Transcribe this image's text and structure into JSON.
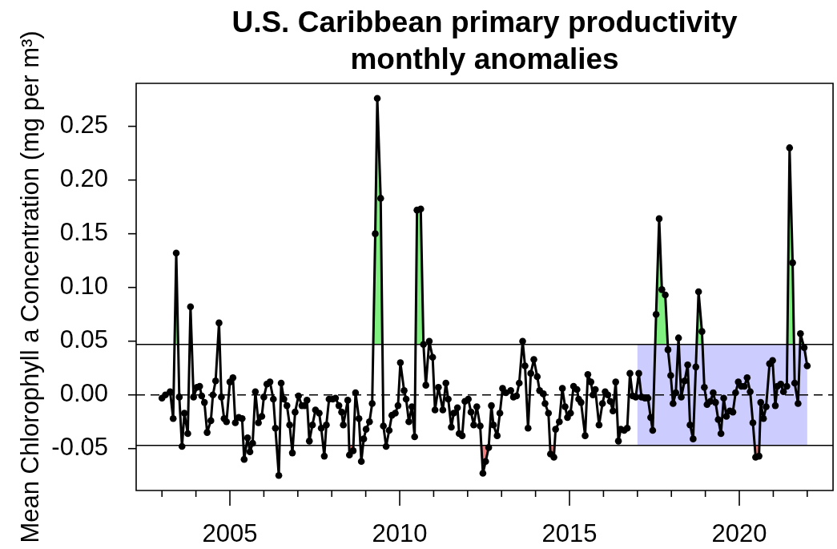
{
  "chart_data": {
    "type": "line",
    "title": "U.S. Caribbean primary productivity monthly anomalies",
    "ylabel": "Mean Chlorophyll a Concentration (mg per m³)",
    "x": [
      2003.0,
      2003.1,
      2003.24,
      2003.33,
      2003.42,
      2003.51,
      2003.59,
      2003.66,
      2003.76,
      2003.84,
      2003.93,
      2004.03,
      2004.11,
      2004.17,
      2004.25,
      2004.33,
      2004.44,
      2004.5,
      2004.58,
      2004.68,
      2004.75,
      2004.83,
      2004.9,
      2005.0,
      2005.09,
      2005.16,
      2005.26,
      2005.36,
      2005.42,
      2005.52,
      2005.59,
      2005.67,
      2005.75,
      2005.84,
      2005.94,
      2006.0,
      2006.09,
      2006.18,
      2006.28,
      2006.34,
      2006.44,
      2006.51,
      2006.59,
      2006.68,
      2006.76,
      2006.84,
      2006.92,
      2007.02,
      2007.12,
      2007.2,
      2007.27,
      2007.34,
      2007.43,
      2007.52,
      2007.63,
      2007.69,
      2007.78,
      2007.84,
      2007.92,
      2008.03,
      2008.11,
      2008.21,
      2008.29,
      2008.34,
      2008.47,
      2008.52,
      2008.63,
      2008.7,
      2008.8,
      2008.87,
      2008.94,
      2009.01,
      2009.11,
      2009.19,
      2009.28,
      2009.34,
      2009.44,
      2009.52,
      2009.6,
      2009.69,
      2009.77,
      2009.87,
      2009.95,
      2010.02,
      2010.13,
      2010.19,
      2010.27,
      2010.36,
      2010.44,
      2010.51,
      2010.62,
      2010.7,
      2010.77,
      2010.87,
      2010.97,
      2011.04,
      2011.14,
      2011.27,
      2011.36,
      2011.43,
      2011.52,
      2011.59,
      2011.7,
      2011.75,
      2011.84,
      2011.92,
      2012.02,
      2012.1,
      2012.18,
      2012.27,
      2012.37,
      2012.45,
      2012.53,
      2012.62,
      2012.7,
      2012.76,
      2012.87,
      2012.95,
      2013.03,
      2013.13,
      2013.27,
      2013.35,
      2013.44,
      2013.52,
      2013.62,
      2013.69,
      2013.78,
      2013.86,
      2013.95,
      2014.05,
      2014.12,
      2014.23,
      2014.28,
      2014.38,
      2014.44,
      2014.54,
      2014.59,
      2014.7,
      2014.79,
      2014.87,
      2014.94,
      2015.03,
      2015.12,
      2015.22,
      2015.27,
      2015.34,
      2015.46,
      2015.54,
      2015.63,
      2015.69,
      2015.76,
      2015.87,
      2015.97,
      2016.05,
      2016.13,
      2016.2,
      2016.28,
      2016.36,
      2016.44,
      2016.51,
      2016.61,
      2016.7,
      2016.78,
      2016.86,
      2016.95,
      2017.04,
      2017.12,
      2017.22,
      2017.31,
      2017.39,
      2017.45,
      2017.55,
      2017.64,
      2017.72,
      2017.82,
      2017.9,
      2017.98,
      2018.05,
      2018.13,
      2018.21,
      2018.29,
      2018.39,
      2018.48,
      2018.55,
      2018.64,
      2018.72,
      2018.8,
      2018.9,
      2018.97,
      2019.05,
      2019.15,
      2019.23,
      2019.3,
      2019.38,
      2019.46,
      2019.54,
      2019.62,
      2019.72,
      2019.81,
      2019.89,
      2019.97,
      2020.06,
      2020.15,
      2020.23,
      2020.32,
      2020.4,
      2020.48,
      2020.58,
      2020.63,
      2020.71,
      2020.79,
      2020.89,
      2020.98,
      2021.06,
      2021.12,
      2021.22,
      2021.3,
      2021.4,
      2021.48,
      2021.57,
      2021.63,
      2021.73,
      2021.8,
      2021.91,
      2022.0
    ],
    "series": [
      {
        "color": "#000000",
        "values": [
          -0.003,
          0.0,
          0.003,
          -0.022,
          0.132,
          -0.002,
          -0.048,
          -0.017,
          -0.036,
          0.082,
          -0.002,
          0.007,
          0.008,
          -0.001,
          -0.007,
          -0.035,
          -0.024,
          0.0,
          0.013,
          0.067,
          -0.002,
          -0.022,
          -0.025,
          0.012,
          0.016,
          -0.026,
          -0.021,
          -0.022,
          -0.06,
          -0.04,
          -0.053,
          -0.045,
          0.003,
          -0.026,
          -0.02,
          -0.002,
          0.01,
          0.012,
          -0.004,
          -0.031,
          -0.075,
          0.011,
          -0.004,
          -0.01,
          -0.028,
          -0.054,
          -0.016,
          -0.001,
          -0.01,
          -0.01,
          -0.005,
          -0.043,
          -0.028,
          -0.014,
          -0.017,
          -0.031,
          -0.057,
          -0.028,
          -0.004,
          -0.004,
          -0.003,
          -0.01,
          -0.016,
          -0.028,
          -0.005,
          -0.056,
          -0.052,
          0.002,
          -0.022,
          -0.062,
          -0.041,
          -0.032,
          -0.025,
          -0.008,
          0.15,
          0.276,
          0.183,
          -0.029,
          -0.048,
          -0.033,
          -0.019,
          -0.017,
          -0.01,
          0.03,
          0.004,
          -0.004,
          -0.025,
          -0.011,
          -0.039,
          0.172,
          0.173,
          0.047,
          0.009,
          0.05,
          0.035,
          -0.014,
          0.007,
          -0.014,
          0.011,
          -0.004,
          -0.03,
          -0.017,
          -0.012,
          -0.036,
          -0.038,
          -0.006,
          -0.004,
          -0.016,
          -0.028,
          -0.011,
          -0.029,
          -0.073,
          -0.062,
          -0.049,
          -0.01,
          -0.028,
          -0.038,
          -0.017,
          0.006,
          0.002,
          0.004,
          -0.002,
          -0.001,
          0.011,
          0.05,
          0.027,
          -0.031,
          0.02,
          0.033,
          0.017,
          0.004,
          0.001,
          -0.008,
          -0.017,
          -0.055,
          -0.058,
          -0.032,
          -0.025,
          0.006,
          -0.011,
          -0.021,
          -0.017,
          0.008,
          0.005,
          -0.004,
          -0.007,
          -0.038,
          0.019,
          0.012,
          0.0,
          0.005,
          -0.028,
          -0.008,
          0.003,
          0.0,
          -0.006,
          -0.015,
          0.012,
          -0.043,
          -0.032,
          -0.033,
          -0.031,
          0.02,
          -0.001,
          -0.002,
          0.02,
          -0.002,
          -0.003,
          -0.003,
          -0.021,
          -0.033,
          0.075,
          0.164,
          0.098,
          0.093,
          0.042,
          0.018,
          -0.008,
          0.002,
          0.053,
          -0.002,
          0.013,
          0.028,
          -0.028,
          -0.041,
          0.026,
          0.096,
          0.059,
          0.007,
          -0.009,
          -0.006,
          0.002,
          -0.007,
          -0.023,
          -0.036,
          -0.003,
          -0.02,
          -0.015,
          -0.016,
          0.002,
          0.012,
          0.008,
          0.008,
          0.016,
          0.003,
          -0.026,
          -0.058,
          -0.057,
          -0.007,
          -0.022,
          -0.011,
          0.029,
          0.032,
          -0.01,
          0.008,
          0.01,
          0.003,
          0.008,
          0.23,
          0.123,
          0.011,
          -0.008,
          0.057,
          0.044,
          0.027
        ]
      }
    ],
    "xlim": [
      2002.24,
      2022.76
    ],
    "ylim": [
      -0.089,
      0.29
    ],
    "xticks": [
      {
        "value": 2003,
        "label": null
      },
      {
        "value": 2004,
        "label": null
      },
      2005,
      {
        "value": 2006,
        "label": null
      },
      {
        "value": 2007,
        "label": null
      },
      {
        "value": 2008,
        "label": null
      },
      {
        "value": 2009,
        "label": null
      },
      2010,
      {
        "value": 2011,
        "label": null
      },
      {
        "value": 2012,
        "label": null
      },
      {
        "value": 2013,
        "label": null
      },
      {
        "value": 2014,
        "label": null
      },
      2015,
      {
        "value": 2016,
        "label": null
      },
      {
        "value": 2017,
        "label": null
      },
      {
        "value": 2018,
        "label": null
      },
      {
        "value": 2019,
        "label": null
      },
      2020,
      {
        "value": 2021,
        "label": null
      },
      {
        "value": 2022,
        "label": null
      }
    ],
    "yticks": [
      -0.05,
      {
        "value": 0,
        "label": "0.00"
      },
      0.05,
      {
        "value": 0.1,
        "label": "0.10"
      },
      0.15,
      {
        "value": 0.2,
        "label": "0.20"
      },
      0.25
    ],
    "ref_lines": [
      {
        "axis": "y",
        "value": 0.047
      },
      {
        "axis": "y",
        "value": -0.047
      },
      {
        "axis": "y",
        "value": 0,
        "line_style": "dashed"
      }
    ],
    "bands": [
      {
        "axis": "x",
        "from": 2017,
        "to": 2022,
        "color": "#ccccff"
      }
    ],
    "marker": "circle"
  }
}
